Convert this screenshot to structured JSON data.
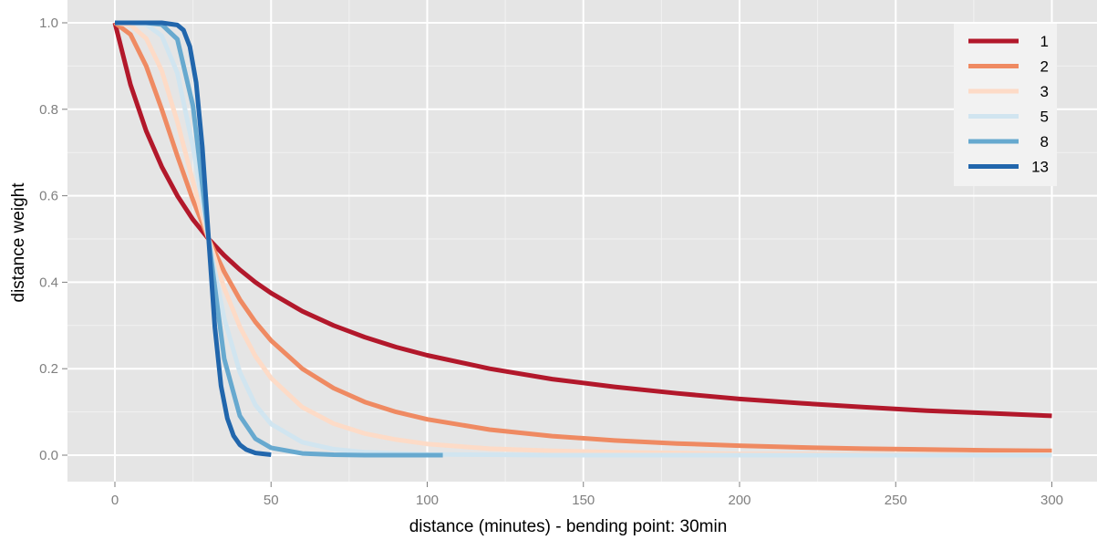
{
  "chart_data": {
    "type": "line",
    "title": "",
    "xlabel": "distance (minutes) - bending point: 30min",
    "ylabel": "distance weight",
    "xlim": [
      -12,
      307
    ],
    "ylim": [
      -0.05,
      1.05
    ],
    "x_ticks": [
      0,
      50,
      100,
      150,
      200,
      250,
      300
    ],
    "x_tick_labels": [
      "0",
      "50",
      "100",
      "150",
      "200",
      "250",
      "300"
    ],
    "y_ticks": [
      0.0,
      0.2,
      0.4,
      0.6,
      0.8,
      1.0
    ],
    "y_tick_labels": [
      "0.0",
      "0.2",
      "0.4",
      "0.6",
      "0.8",
      "1.0"
    ],
    "grid": true,
    "panel_background": "#e5e5e5",
    "legend_position": "top-right",
    "series": [
      {
        "name": "1",
        "color": "#b2182b",
        "x": [
          0,
          5,
          10,
          15,
          20,
          25,
          30,
          35,
          40,
          45,
          50,
          60,
          70,
          80,
          90,
          100,
          120,
          140,
          160,
          180,
          200,
          220,
          240,
          260,
          280,
          300
        ],
        "y": [
          1.0,
          0.857,
          0.75,
          0.667,
          0.6,
          0.545,
          0.5,
          0.462,
          0.429,
          0.4,
          0.375,
          0.333,
          0.3,
          0.273,
          0.25,
          0.231,
          0.2,
          0.176,
          0.158,
          0.143,
          0.13,
          0.12,
          0.111,
          0.103,
          0.097,
          0.091
        ]
      },
      {
        "name": "2",
        "color": "#ef8a62",
        "x": [
          0,
          5,
          10,
          15,
          20,
          25,
          30,
          35,
          40,
          45,
          50,
          60,
          70,
          80,
          90,
          100,
          120,
          140,
          160,
          180,
          200,
          220,
          240,
          260,
          280,
          300
        ],
        "y": [
          1.0,
          0.973,
          0.9,
          0.8,
          0.692,
          0.59,
          0.5,
          0.424,
          0.36,
          0.308,
          0.265,
          0.2,
          0.155,
          0.123,
          0.1,
          0.083,
          0.059,
          0.044,
          0.034,
          0.027,
          0.022,
          0.018,
          0.015,
          0.013,
          0.011,
          0.01
        ]
      },
      {
        "name": "3",
        "color": "#fddbc7",
        "x": [
          0,
          5,
          10,
          15,
          20,
          25,
          30,
          35,
          40,
          45,
          50,
          60,
          70,
          80,
          90,
          100,
          120,
          140,
          160,
          180,
          200,
          220,
          240,
          260,
          280,
          300
        ],
        "y": [
          1.0,
          0.995,
          0.964,
          0.889,
          0.771,
          0.633,
          0.5,
          0.386,
          0.297,
          0.229,
          0.178,
          0.111,
          0.073,
          0.05,
          0.036,
          0.026,
          0.015,
          0.01,
          0.007,
          0.005,
          0.003,
          0.003,
          0.002,
          0.002,
          0.001,
          0.001
        ]
      },
      {
        "name": "5",
        "color": "#d1e5f0",
        "x": [
          0,
          5,
          10,
          15,
          20,
          25,
          30,
          35,
          40,
          45,
          50,
          60,
          70,
          80,
          90,
          100,
          120,
          140,
          160,
          180,
          200,
          220,
          240,
          260,
          280,
          300
        ],
        "y": [
          1.0,
          1.0,
          0.996,
          0.97,
          0.884,
          0.713,
          0.5,
          0.316,
          0.192,
          0.116,
          0.072,
          0.03,
          0.014,
          0.007,
          0.004,
          0.002,
          0.001,
          0.0,
          0.0,
          0.0,
          0.0,
          0.0,
          0.0,
          0.0,
          0.0,
          0.0
        ]
      },
      {
        "name": "8",
        "color": "#67a9cf",
        "x": [
          0,
          5,
          10,
          15,
          20,
          25,
          30,
          35,
          40,
          45,
          50,
          60,
          70,
          80,
          90,
          100,
          105
        ],
        "y": [
          1.0,
          1.0,
          1.0,
          0.996,
          0.962,
          0.808,
          0.5,
          0.223,
          0.091,
          0.038,
          0.017,
          0.004,
          0.001,
          0.0,
          0.0,
          0.0,
          0.0
        ]
      },
      {
        "name": "13",
        "color": "#2166ac",
        "x": [
          0,
          5,
          10,
          15,
          20,
          22,
          24,
          26,
          28,
          30,
          32,
          34,
          36,
          38,
          40,
          42,
          45,
          50
        ],
        "y": [
          1.0,
          1.0,
          1.0,
          1.0,
          0.995,
          0.983,
          0.945,
          0.862,
          0.712,
          0.5,
          0.296,
          0.16,
          0.085,
          0.045,
          0.024,
          0.013,
          0.005,
          0.001
        ]
      }
    ]
  }
}
